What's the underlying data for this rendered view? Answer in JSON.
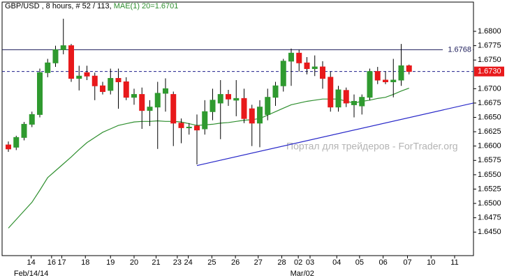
{
  "chart_data": {
    "type": "candlestick",
    "title": "GBP/USD , 8 hours, # 52 / 113,",
    "indicator_label": "MAE(1) 20=1.6701",
    "watermark": "Портал для трейдеров - ForTrader.org",
    "up_color": "#2f9a2f",
    "down_color": "#e8191b",
    "open": [
      1.6602,
      1.6598,
      1.6615,
      1.6638,
      1.6655,
      1.6728,
      1.6745,
      1.6768,
      1.6775,
      1.6718,
      1.6728,
      1.6722,
      1.6705,
      1.6697,
      1.6718,
      1.6712,
      1.6685,
      1.669,
      1.6662,
      1.6668,
      1.6692,
      1.669,
      1.664,
      1.6632,
      1.6635,
      1.663,
      1.666,
      1.6675,
      1.669,
      1.668,
      1.6683,
      1.6665,
      1.664,
      1.6655,
      1.6685,
      1.6705,
      1.6748,
      1.6762,
      1.6745,
      1.6735,
      1.6738,
      1.672,
      1.6668,
      1.6697,
      1.6672,
      1.667,
      1.6685,
      1.673,
      1.6715,
      1.6712,
      1.6715,
      1.674
    ],
    "high": [
      1.6608,
      1.6618,
      1.6642,
      1.666,
      1.6735,
      1.6752,
      1.6775,
      1.6822,
      1.6778,
      1.674,
      1.674,
      1.6728,
      1.6712,
      1.6735,
      1.6735,
      1.672,
      1.67,
      1.6702,
      1.668,
      1.6712,
      1.6718,
      1.6695,
      1.6648,
      1.664,
      1.6655,
      1.668,
      1.67,
      1.6715,
      1.6698,
      1.6715,
      1.67,
      1.6672,
      1.668,
      1.67,
      1.6712,
      1.6752,
      1.677,
      1.6768,
      1.6755,
      1.6758,
      1.6748,
      1.673,
      1.6705,
      1.6702,
      1.669,
      1.669,
      1.6735,
      1.6738,
      1.673,
      1.6752,
      1.6778,
      1.6742
    ],
    "low": [
      1.659,
      1.6593,
      1.661,
      1.6633,
      1.665,
      1.672,
      1.6738,
      1.676,
      1.6712,
      1.6697,
      1.6715,
      1.668,
      1.669,
      1.669,
      1.6665,
      1.668,
      1.6672,
      1.663,
      1.6635,
      1.6595,
      1.666,
      1.66,
      1.6605,
      1.662,
      1.6568,
      1.662,
      1.6645,
      1.6612,
      1.667,
      1.6652,
      1.664,
      1.66,
      1.6598,
      1.6645,
      1.667,
      1.6695,
      1.6705,
      1.673,
      1.6725,
      1.6722,
      1.67,
      1.666,
      1.666,
      1.6668,
      1.665,
      1.6655,
      1.668,
      1.6708,
      1.6708,
      1.6685,
      1.6705,
      1.6725
    ],
    "close": [
      1.6595,
      1.6615,
      1.6638,
      1.6655,
      1.6728,
      1.6745,
      1.6768,
      1.6775,
      1.6718,
      1.6722,
      1.6722,
      1.6705,
      1.6695,
      1.6718,
      1.6712,
      1.6685,
      1.669,
      1.6662,
      1.6668,
      1.6692,
      1.67,
      1.664,
      1.6632,
      1.6633,
      1.6628,
      1.666,
      1.668,
      1.669,
      1.6682,
      1.6683,
      1.6648,
      1.664,
      1.6668,
      1.6685,
      1.6705,
      1.6748,
      1.6762,
      1.6745,
      1.6735,
      1.6738,
      1.6718,
      1.6668,
      1.6698,
      1.6675,
      1.6678,
      1.6685,
      1.673,
      1.6715,
      1.6712,
      1.6715,
      1.674,
      1.673
    ],
    "series": [
      {
        "name": "MAE(1) 20",
        "color": "#2f8f2f",
        "values": [
          1.6457,
          1.6472,
          1.6487,
          1.6502,
          1.6523,
          1.6545,
          1.6557,
          1.6569,
          1.6581,
          1.6594,
          1.6606,
          1.6615,
          1.6624,
          1.663,
          1.6636,
          1.6639,
          1.6642,
          1.6643,
          1.6643,
          1.6644,
          1.6643,
          1.6643,
          1.6642,
          1.6639,
          1.6636,
          1.6637,
          1.6638,
          1.664,
          1.6641,
          1.6643,
          1.6645,
          1.6646,
          1.6648,
          1.6654,
          1.666,
          1.6666,
          1.6672,
          1.6675,
          1.6678,
          1.668,
          1.6682,
          1.6682,
          1.6682,
          1.6678,
          1.6675,
          1.6678,
          1.668,
          1.6683,
          1.6685,
          1.669,
          1.6696,
          1.6701
        ]
      }
    ],
    "levels": [
      {
        "value": 1.6768,
        "label": "1.6768",
        "color": "#1c1c5a",
        "dashed": false
      },
      {
        "value": 1.673,
        "label": "1.6730",
        "color": "#1c1c8a",
        "dashed": true
      }
    ],
    "current_price_color": "#e8191b",
    "trendline": {
      "x": [
        24,
        59.2
      ],
      "y": [
        1.6566,
        1.6675
      ],
      "color": "#2626c8"
    },
    "xlim": [
      -0.8,
      59.2
    ],
    "ylim": [
      1.6409,
      1.6851
    ],
    "yticks": [
      {
        "value": 1.645,
        "label": "1.6450"
      },
      {
        "value": 1.6475,
        "label": "1.6475"
      },
      {
        "value": 1.65,
        "label": "1.6500"
      },
      {
        "value": 1.6525,
        "label": "1.6525"
      },
      {
        "value": 1.655,
        "label": "1.6550"
      },
      {
        "value": 1.6575,
        "label": "1.6575"
      },
      {
        "value": 1.66,
        "label": "1.6600"
      },
      {
        "value": 1.6625,
        "label": "1.6625"
      },
      {
        "value": 1.665,
        "label": "1.6650"
      },
      {
        "value": 1.6675,
        "label": "1.6675"
      },
      {
        "value": 1.67,
        "label": "1.6700"
      },
      {
        "value": 1.675,
        "label": "1.6750"
      },
      {
        "value": 1.6775,
        "label": "1.6775"
      },
      {
        "value": 1.68,
        "label": "1.6800"
      }
    ],
    "xticks": [
      {
        "value": 2.9,
        "label": "14"
      },
      {
        "value": 5.5,
        "label": "16"
      },
      {
        "value": 6.8,
        "label": "17"
      },
      {
        "value": 9.8,
        "label": "18"
      },
      {
        "value": 13.0,
        "label": "19"
      },
      {
        "value": 16.0,
        "label": "20"
      },
      {
        "value": 18.8,
        "label": "21"
      },
      {
        "value": 21.5,
        "label": "23"
      },
      {
        "value": 22.9,
        "label": "24"
      },
      {
        "value": 25.9,
        "label": "25"
      },
      {
        "value": 28.9,
        "label": "26"
      },
      {
        "value": 31.8,
        "label": "27"
      },
      {
        "value": 34.8,
        "label": "28"
      },
      {
        "value": 36.9,
        "label": "02"
      },
      {
        "value": 38.4,
        "label": "03"
      },
      {
        "value": 41.8,
        "label": "04"
      },
      {
        "value": 44.7,
        "label": "05"
      },
      {
        "value": 47.7,
        "label": "06"
      },
      {
        "value": 50.8,
        "label": "07"
      },
      {
        "value": 53.8,
        "label": "10"
      },
      {
        "value": 56.8,
        "label": "11"
      }
    ],
    "xsublabels": [
      {
        "value": 2.9,
        "label": "Feb/14/14"
      },
      {
        "value": 37.4,
        "label": "Mar/02"
      }
    ]
  }
}
